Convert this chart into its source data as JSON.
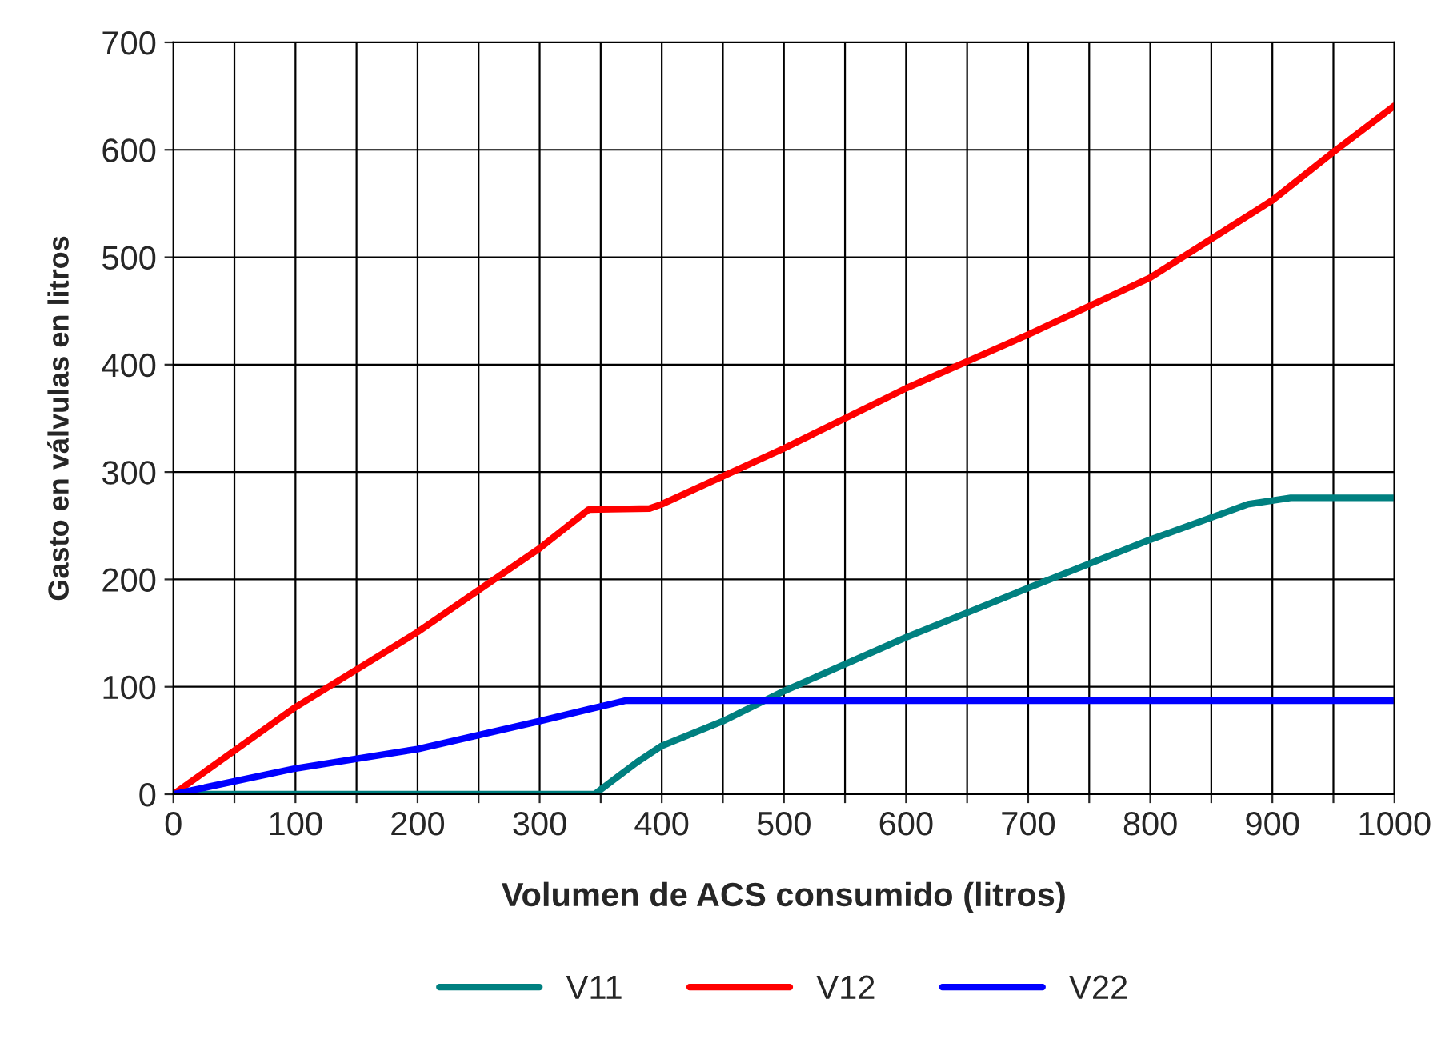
{
  "chart_data": {
    "type": "line",
    "xlabel": "Volumen de ACS consumido (litros)",
    "ylabel": "Gasto en válvulas en litros",
    "xlim": [
      0,
      1000
    ],
    "xticks": [
      0,
      {
        "value": 50,
        "label": null
      },
      100,
      {
        "value": 150,
        "label": null
      },
      200,
      {
        "value": 250,
        "label": null
      },
      300,
      {
        "value": 350,
        "label": null
      },
      400,
      {
        "value": 450,
        "label": null
      },
      500,
      {
        "value": 550,
        "label": null
      },
      600,
      {
        "value": 650,
        "label": null
      },
      700,
      {
        "value": 750,
        "label": null
      },
      800,
      {
        "value": 850,
        "label": null
      },
      900,
      {
        "value": 950,
        "label": null
      },
      1000
    ],
    "ylim": [
      0,
      700
    ],
    "yticks": [
      0,
      100,
      200,
      300,
      400,
      500,
      600,
      700
    ],
    "grid": true,
    "legend": "bottom",
    "marker": "none",
    "line_style": "solid",
    "series": [
      {
        "name": "V11",
        "color": "#008080",
        "x": [
          0,
          345,
          380,
          400,
          450,
          500,
          600,
          700,
          800,
          880,
          915,
          1000
        ],
        "values": [
          0,
          0,
          30,
          45,
          68,
          96,
          146,
          192,
          237,
          270,
          276,
          276
        ]
      },
      {
        "name": "V12",
        "color": "#ff0000",
        "x": [
          0,
          100,
          200,
          300,
          340,
          390,
          400,
          500,
          600,
          700,
          800,
          900,
          950,
          1000
        ],
        "values": [
          0,
          81,
          151,
          229,
          265,
          266,
          270,
          322,
          378,
          428,
          481,
          553,
          598,
          641
        ]
      },
      {
        "name": "V22",
        "color": "#0000ff",
        "x": [
          0,
          100,
          200,
          300,
          340,
          370,
          1000
        ],
        "values": [
          0,
          24,
          42,
          68,
          79,
          87,
          87
        ]
      }
    ]
  }
}
